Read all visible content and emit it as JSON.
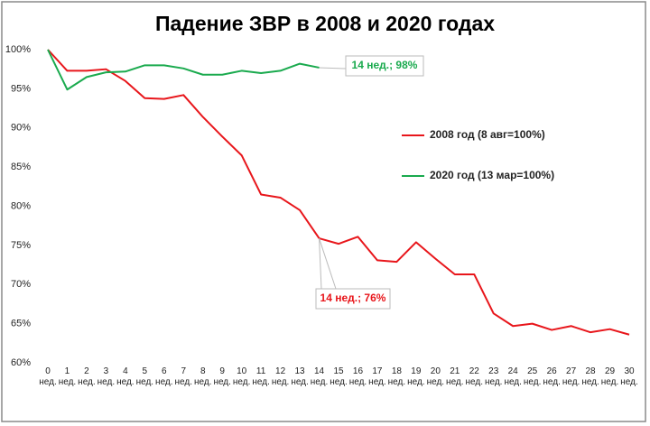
{
  "chart_data": {
    "type": "line",
    "title": "Падение ЗВР в 2008 и 2020 годах",
    "categories": [
      "0 нед.",
      "1 нед.",
      "2 нед.",
      "3 нед.",
      "4 нед.",
      "5 нед.",
      "6 нед.",
      "7 нед.",
      "8 нед.",
      "9 нед.",
      "10 нед.",
      "11 нед.",
      "12 нед.",
      "13 нед.",
      "14 нед.",
      "15 нед.",
      "16 нед.",
      "17 нед.",
      "18 нед.",
      "19 нед.",
      "20 нед.",
      "21 нед.",
      "22 нед.",
      "23 нед.",
      "24 нед.",
      "25 нед.",
      "26 нед.",
      "27 нед.",
      "28 нед.",
      "29 нед.",
      "30 нед."
    ],
    "series": [
      {
        "name": "2008 год (8 авг=100%)",
        "color": "#e8161b",
        "values": [
          100,
          97.3,
          97.3,
          97.5,
          96.0,
          93.8,
          93.7,
          94.2,
          91.4,
          88.9,
          86.5,
          81.5,
          81.1,
          79.5,
          75.9,
          75.2,
          76.1,
          73.1,
          72.9,
          75.4,
          73.3,
          71.3,
          71.3,
          66.3,
          64.7,
          65.0,
          64.2,
          64.7,
          63.9,
          64.3,
          63.6
        ]
      },
      {
        "name": "2020 год (13 мар=100%)",
        "color": "#1aaa4e",
        "values": [
          100,
          94.9,
          96.5,
          97.1,
          97.2,
          98.0,
          98.0,
          97.6,
          96.8,
          96.8,
          97.3,
          97.0,
          97.3,
          98.2,
          97.7,
          null,
          null,
          null,
          null,
          null,
          null,
          null,
          null,
          null,
          null,
          null,
          null,
          null,
          null,
          null,
          null
        ]
      }
    ],
    "annotations": [
      "14 нед.; 98%",
      "14 нед.; 76%"
    ],
    "ylim": [
      60,
      100
    ],
    "yticks": [
      {
        "value": 60,
        "label": "60%"
      },
      {
        "value": 65,
        "label": "65%"
      },
      {
        "value": 70,
        "label": "70%"
      },
      {
        "value": 75,
        "label": "75%"
      },
      {
        "value": 80,
        "label": "80%"
      },
      {
        "value": 85,
        "label": "85%"
      },
      {
        "value": 90,
        "label": "90%"
      },
      {
        "value": 95,
        "label": "95%"
      },
      {
        "value": 100,
        "label": "100%"
      }
    ],
    "grid": false,
    "legend": "right"
  }
}
